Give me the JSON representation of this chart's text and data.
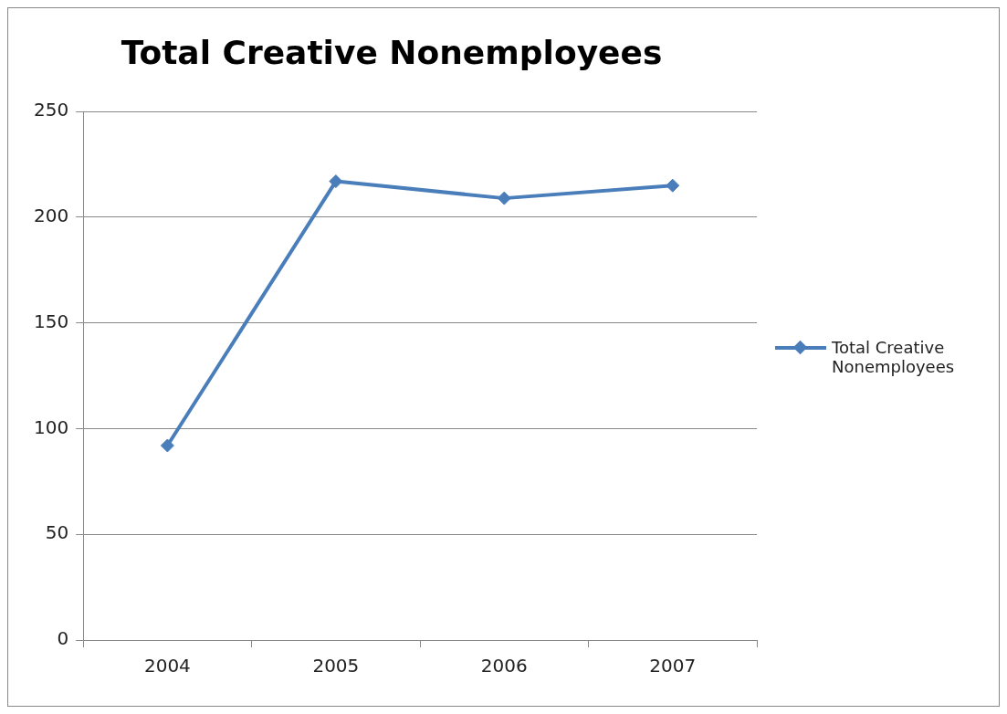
{
  "chart_data": {
    "type": "line",
    "title": "Total Creative Nonemployees",
    "categories": [
      "2004",
      "2005",
      "2006",
      "2007"
    ],
    "series": [
      {
        "name": "Total Creative Nonemployees",
        "color": "#4a7ebb",
        "values": [
          92,
          217,
          209,
          215
        ]
      }
    ],
    "ylim": [
      0,
      250
    ],
    "yticks": [
      0,
      50,
      100,
      150,
      200,
      250
    ],
    "grid": "y",
    "legend": "right",
    "marker": "diamond",
    "line_style": "solid"
  }
}
